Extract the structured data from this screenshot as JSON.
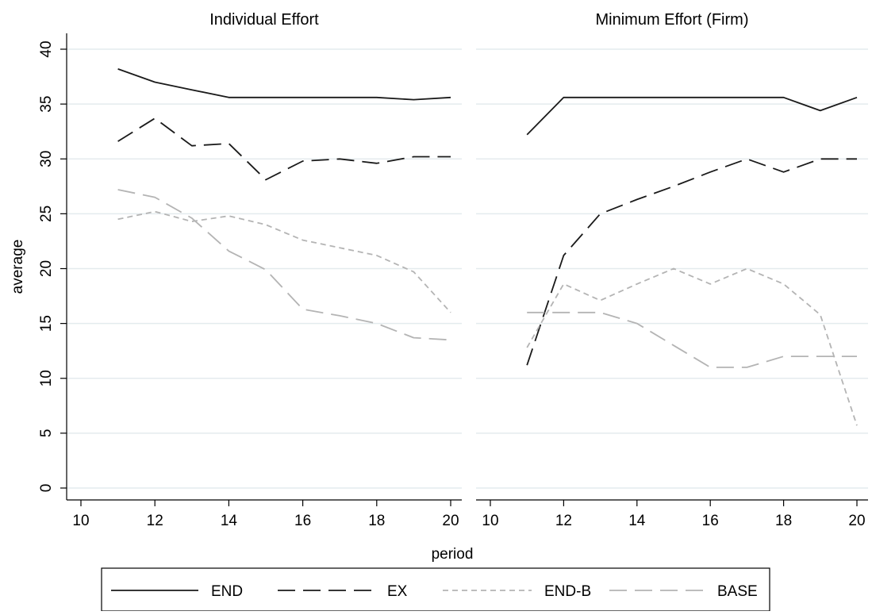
{
  "chart_data": {
    "type": "line",
    "xlabel": "period",
    "ylabel": "average",
    "xlim": [
      10,
      20
    ],
    "ylim": [
      0,
      40
    ],
    "xticks": [
      10,
      12,
      14,
      16,
      18,
      20
    ],
    "yticks": [
      0,
      5,
      10,
      15,
      20,
      25,
      30,
      35,
      40
    ],
    "grid": "horizontal",
    "legend_position": "bottom",
    "legend": [
      {
        "name": "END",
        "color": "#1a1a1a",
        "dash": "solid"
      },
      {
        "name": "EX",
        "color": "#1a1a1a",
        "dash": "long-dash"
      },
      {
        "name": "END-B",
        "color": "#b4b4b4",
        "dash": "short-dash"
      },
      {
        "name": "BASE",
        "color": "#b4b4b4",
        "dash": "long-dash"
      }
    ],
    "panels": [
      {
        "title": "Individual Effort",
        "x": [
          11,
          12,
          13,
          14,
          15,
          16,
          17,
          18,
          19,
          20
        ],
        "series": [
          {
            "name": "END",
            "values": [
              38.2,
              37.0,
              36.3,
              35.6,
              35.6,
              35.6,
              35.6,
              35.6,
              35.4,
              35.6
            ]
          },
          {
            "name": "EX",
            "values": [
              31.6,
              33.7,
              31.2,
              31.4,
              28.1,
              29.8,
              30.0,
              29.6,
              30.2,
              30.2
            ]
          },
          {
            "name": "END-B",
            "values": [
              24.5,
              25.2,
              24.3,
              24.8,
              24.0,
              22.6,
              21.9,
              21.2,
              19.7,
              16.0
            ]
          },
          {
            "name": "BASE",
            "values": [
              27.2,
              26.5,
              24.6,
              21.6,
              19.9,
              16.3,
              15.7,
              15.0,
              13.7,
              13.5
            ]
          }
        ]
      },
      {
        "title": "Minimum Effort (Firm)",
        "x": [
          11,
          12,
          13,
          14,
          15,
          16,
          17,
          18,
          19,
          20
        ],
        "series": [
          {
            "name": "END",
            "values": [
              32.2,
              35.6,
              35.6,
              35.6,
              35.6,
              35.6,
              35.6,
              35.6,
              34.4,
              35.6
            ]
          },
          {
            "name": "EX",
            "values": [
              11.2,
              21.2,
              25.0,
              26.3,
              27.5,
              28.8,
              30.0,
              28.8,
              30.0,
              30.0
            ]
          },
          {
            "name": "END-B",
            "values": [
              12.8,
              18.6,
              17.1,
              18.6,
              20.0,
              18.6,
              20.0,
              18.6,
              15.8,
              5.7
            ]
          },
          {
            "name": "BASE",
            "values": [
              16.0,
              16.0,
              16.0,
              15.0,
              13.0,
              11.0,
              11.0,
              12.0,
              12.0,
              12.0
            ]
          }
        ]
      }
    ]
  }
}
